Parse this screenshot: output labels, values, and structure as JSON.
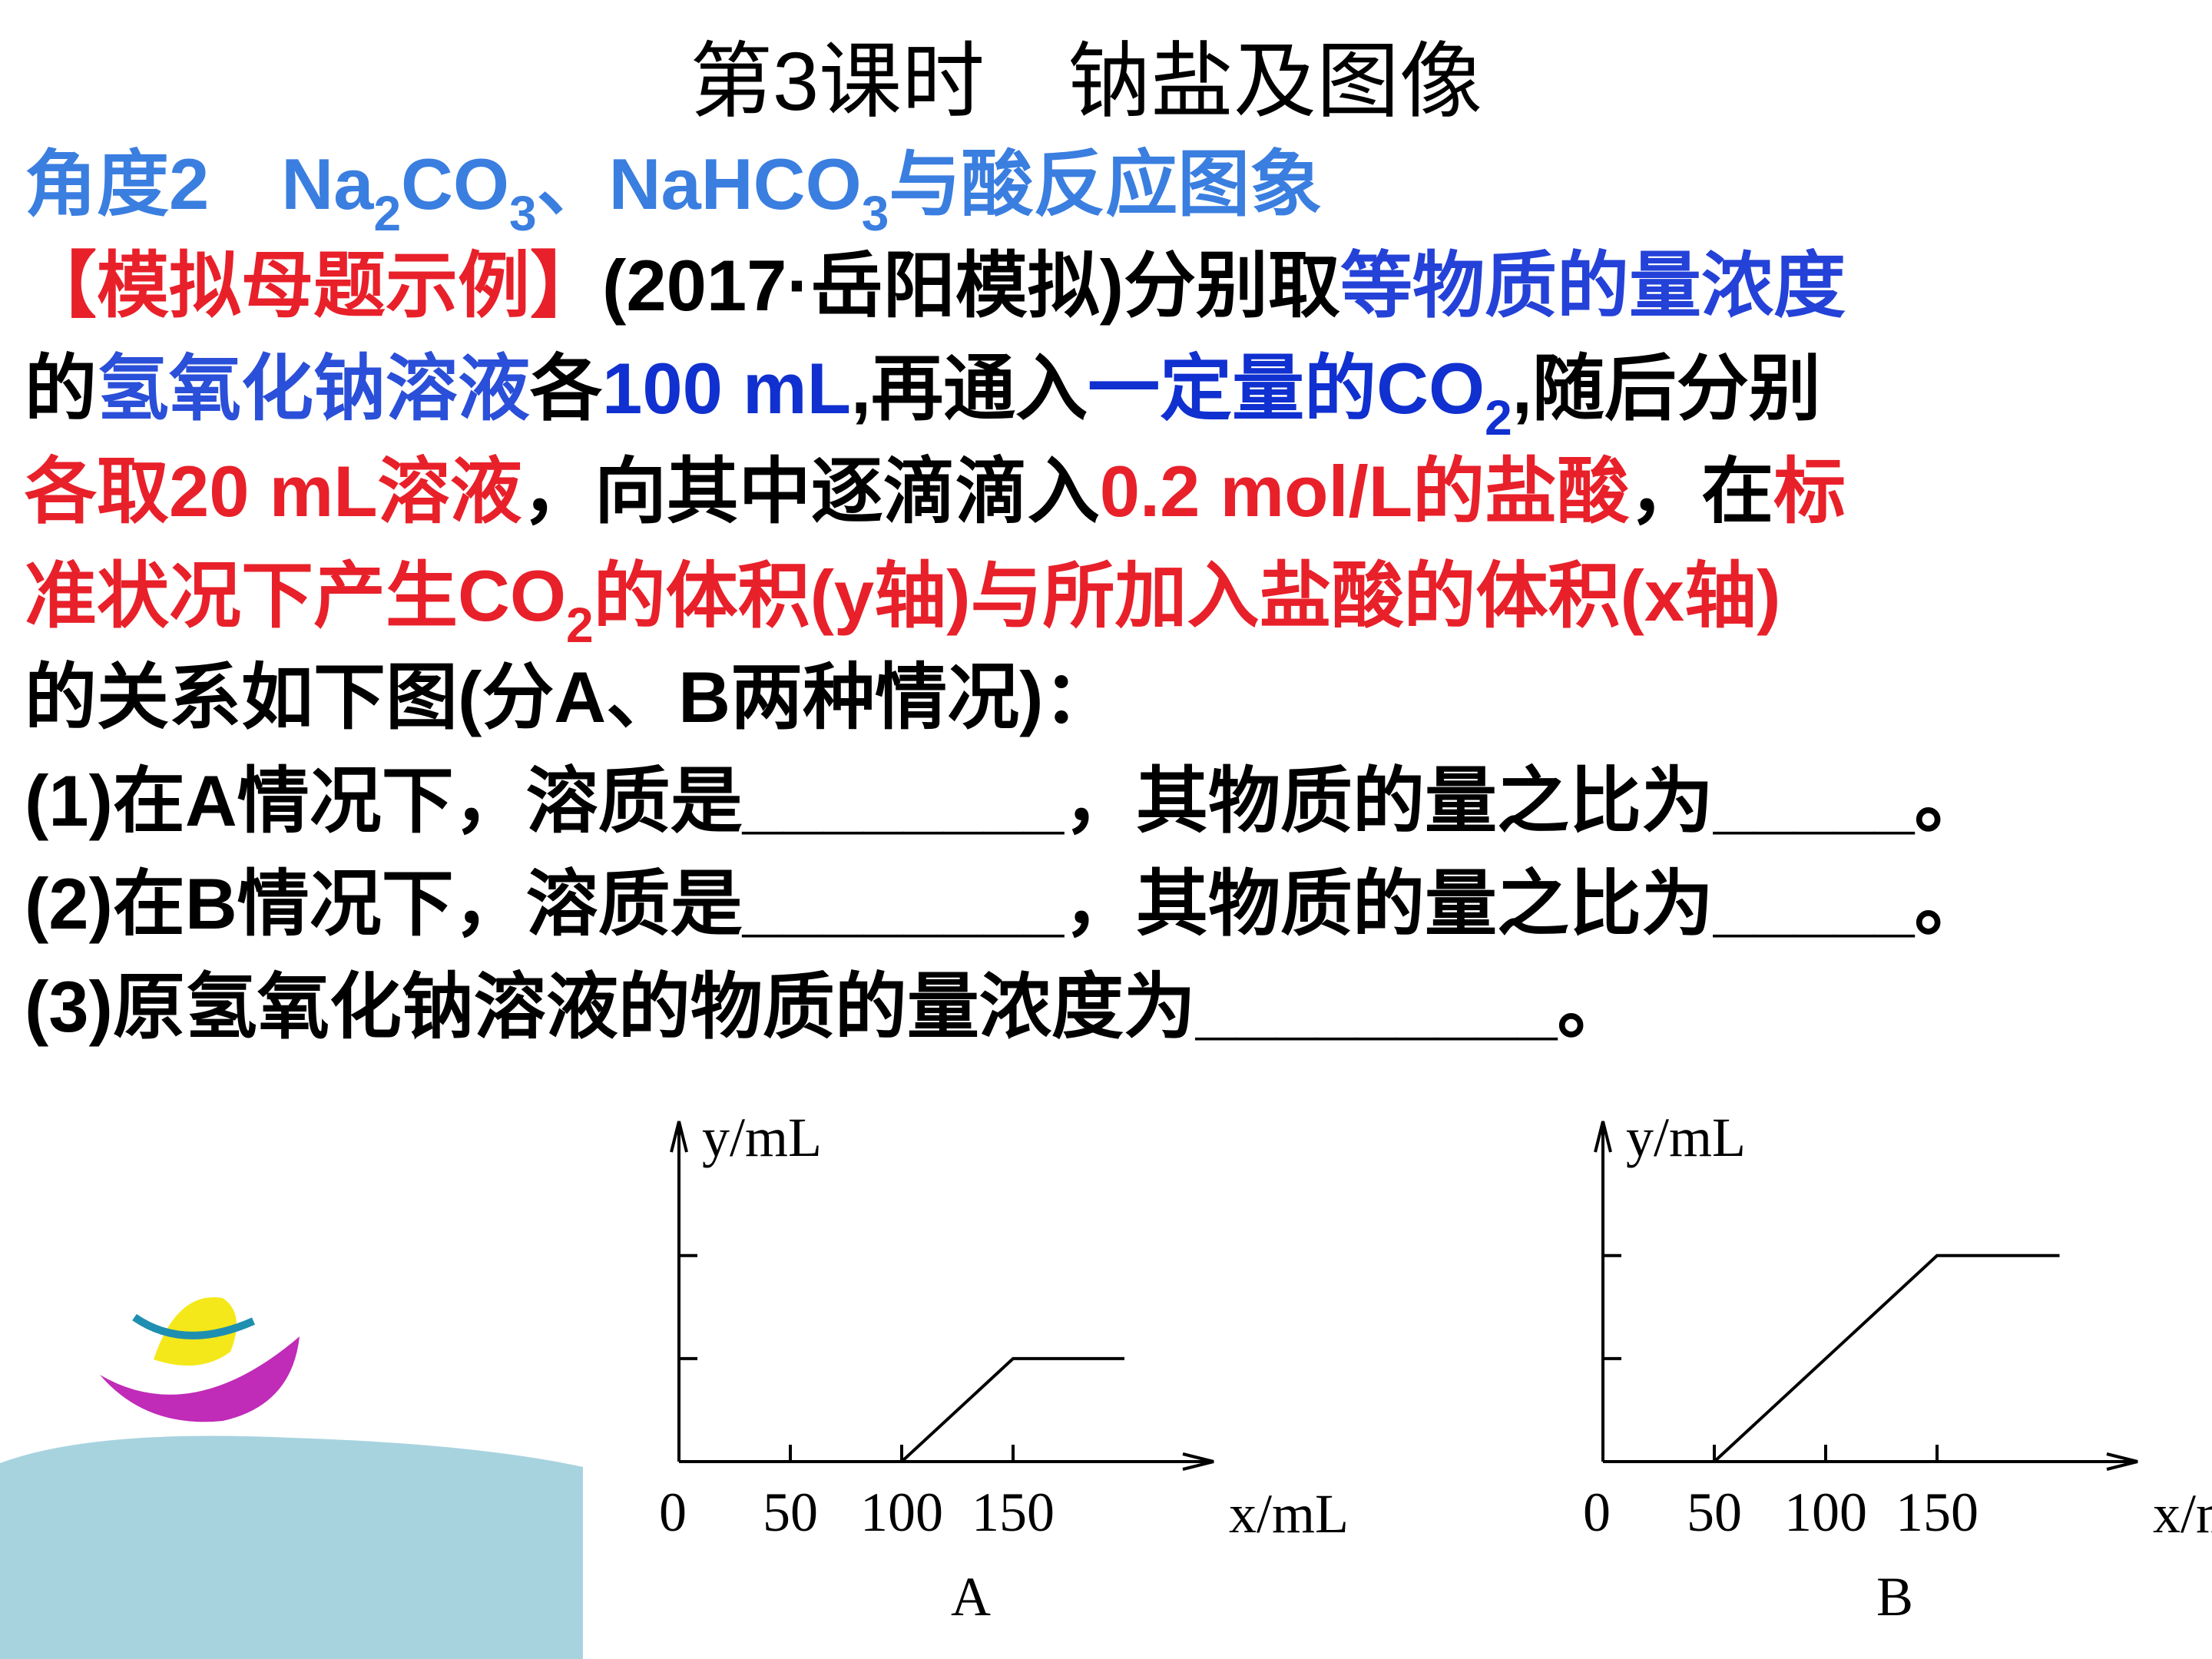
{
  "title": "第3课时　钠盐及图像",
  "lines": [
    {
      "runs": [
        {
          "text": "角度2　Na",
          "color": "#3a7ee0"
        },
        {
          "text": "2",
          "color": "#3a7ee0",
          "sub": true
        },
        {
          "text": "CO",
          "color": "#3a7ee0"
        },
        {
          "text": "3",
          "color": "#3a7ee0",
          "sub": true
        },
        {
          "text": "、NaHCO",
          "color": "#3a7ee0"
        },
        {
          "text": "3",
          "color": "#3a7ee0",
          "sub": true
        },
        {
          "text": "与酸反应图象",
          "color": "#3a7ee0"
        }
      ]
    },
    {
      "runs": [
        {
          "text": "【模拟母题示例】",
          "color": "#e8202a"
        },
        {
          "text": "(2017·岳阳模拟)分别取",
          "color": "#000000"
        },
        {
          "text": "等物质的量浓度",
          "color": "#2442d8"
        }
      ]
    },
    {
      "runs": [
        {
          "text": "的",
          "color": "#000000"
        },
        {
          "text": "氢氧化钠溶液",
          "color": "#2a4fd8"
        },
        {
          "text": "各",
          "color": "#000000"
        },
        {
          "text": "100 mL",
          "color": "#1030d0"
        },
        {
          "text": ",再通入",
          "color": "#000000"
        },
        {
          "text": "一定量的CO",
          "color": "#1030d0"
        },
        {
          "text": "2",
          "color": "#1030d0",
          "sub": true
        },
        {
          "text": ",随后分别",
          "color": "#000000"
        }
      ]
    },
    {
      "runs": [
        {
          "text": "各取20 mL溶液",
          "color": "#e8202a"
        },
        {
          "text": "，向其中逐滴滴入",
          "color": "#000000"
        },
        {
          "text": "0.2 mol/L的盐酸",
          "color": "#e8202a"
        },
        {
          "text": "，在",
          "color": "#000000"
        },
        {
          "text": "标",
          "color": "#e8202a"
        }
      ]
    },
    {
      "runs": [
        {
          "text": "准状况下产生CO",
          "color": "#e8202a"
        },
        {
          "text": "2",
          "color": "#e8202a",
          "sub": true
        },
        {
          "text": "的体积(y轴)与所加入盐酸的体积(x轴)",
          "color": "#e8202a"
        }
      ]
    },
    {
      "runs": [
        {
          "text": "的关系如下图(分A、B两种情况)：",
          "color": "#000000"
        }
      ]
    },
    {
      "runs": [
        {
          "text": "(1)在A情况下，溶质是________，其物质的量之比为_____。",
          "color": "#000000"
        }
      ]
    },
    {
      "runs": [
        {
          "text": "(2)在B情况下，溶质是________，其物质的量之比为_____。",
          "color": "#000000"
        }
      ]
    },
    {
      "runs": [
        {
          "text": "(3)原氢氧化钠溶液的物质的量浓度为_________。",
          "color": "#000000"
        }
      ]
    }
  ],
  "chart_data": [
    {
      "type": "line",
      "caption": "A",
      "xlabel": "x/mL",
      "ylabel": "y/mL",
      "x": [
        0,
        100,
        150,
        200
      ],
      "values": [
        0,
        0,
        224,
        224
      ],
      "color": "#000000",
      "xlim": [
        0,
        240
      ],
      "ylim": [
        0,
        740
      ],
      "xticks": [
        0,
        50,
        100,
        150
      ],
      "yticks": [
        224,
        448
      ],
      "ytick_labels": false
    },
    {
      "type": "line",
      "caption": "B",
      "xlabel": "x/mL",
      "ylabel": "y/mL",
      "x": [
        0,
        50,
        150,
        205
      ],
      "values": [
        0,
        0,
        448,
        448
      ],
      "color": "#000000",
      "xlim": [
        0,
        240
      ],
      "ylim": [
        0,
        740
      ],
      "xticks": [
        0,
        50,
        100,
        150
      ],
      "yticks": [
        224,
        448
      ],
      "ytick_labels": false
    }
  ]
}
